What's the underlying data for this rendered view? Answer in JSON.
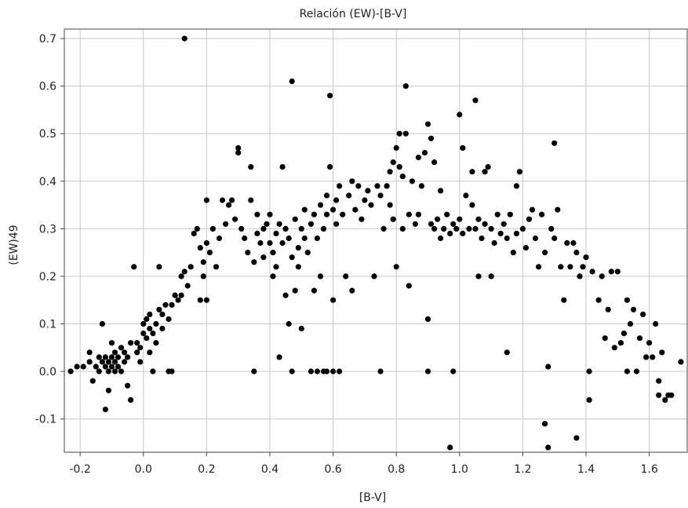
{
  "chart_data": {
    "type": "scatter",
    "title": "Relación (EW)-[B-V]",
    "xlabel": "[B-V]",
    "ylabel": "(EW)49",
    "xlim": [
      -0.25,
      1.72
    ],
    "ylim": [
      -0.17,
      0.72
    ],
    "xticks": [
      -0.2,
      0.0,
      0.2,
      0.4,
      0.6,
      0.8,
      1.0,
      1.2,
      1.4,
      1.6
    ],
    "xtick_labels": [
      "-0.2",
      "0.0",
      "0.2",
      "0.4",
      "0.6",
      "0.8",
      "1.0",
      "1.2",
      "1.4",
      "1.6"
    ],
    "yticks": [
      -0.1,
      0.0,
      0.1,
      0.2,
      0.3,
      0.4,
      0.5,
      0.6,
      0.7
    ],
    "ytick_labels": [
      "-0.1",
      "0.0",
      "0.1",
      "0.2",
      "0.3",
      "0.4",
      "0.5",
      "0.6",
      "0.7"
    ],
    "grid": true,
    "marker_color": "#000000",
    "grid_color": "#c8c8c8",
    "points": [
      [
        -0.23,
        0.0
      ],
      [
        -0.21,
        0.01
      ],
      [
        -0.19,
        0.01
      ],
      [
        -0.17,
        0.02
      ],
      [
        -0.17,
        0.04
      ],
      [
        -0.16,
        -0.02
      ],
      [
        -0.15,
        0.01
      ],
      [
        -0.14,
        0.0
      ],
      [
        -0.14,
        0.03
      ],
      [
        -0.13,
        0.02
      ],
      [
        -0.13,
        0.1
      ],
      [
        -0.12,
        0.01
      ],
      [
        -0.12,
        -0.08
      ],
      [
        -0.12,
        0.03
      ],
      [
        -0.11,
        0.0
      ],
      [
        -0.11,
        0.02
      ],
      [
        -0.11,
        -0.04
      ],
      [
        -0.1,
        0.01
      ],
      [
        -0.1,
        0.03
      ],
      [
        -0.1,
        0.06
      ],
      [
        -0.09,
        0.0
      ],
      [
        -0.09,
        0.02
      ],
      [
        -0.09,
        0.04
      ],
      [
        -0.08,
        0.01
      ],
      [
        -0.08,
        0.03
      ],
      [
        -0.07,
        0.0
      ],
      [
        -0.07,
        0.05
      ],
      [
        -0.06,
        0.02
      ],
      [
        -0.06,
        0.04
      ],
      [
        -0.05,
        -0.03
      ],
      [
        -0.05,
        0.03
      ],
      [
        -0.04,
        0.06
      ],
      [
        -0.04,
        -0.06
      ],
      [
        -0.03,
        0.22
      ],
      [
        -0.02,
        0.04
      ],
      [
        -0.02,
        0.06
      ],
      [
        -0.01,
        0.02
      ],
      [
        -0.01,
        0.05
      ],
      [
        0.0,
        0.08
      ],
      [
        0.0,
        0.1
      ],
      [
        0.01,
        0.07
      ],
      [
        0.01,
        0.11
      ],
      [
        0.02,
        0.09
      ],
      [
        0.02,
        0.12
      ],
      [
        0.02,
        0.04
      ],
      [
        0.03,
        0.08
      ],
      [
        0.03,
        0.0
      ],
      [
        0.04,
        0.06
      ],
      [
        0.04,
        0.1
      ],
      [
        0.05,
        0.13
      ],
      [
        0.05,
        0.22
      ],
      [
        0.06,
        0.09
      ],
      [
        0.06,
        0.12
      ],
      [
        0.07,
        0.14
      ],
      [
        0.08,
        0.11
      ],
      [
        0.08,
        0.0
      ],
      [
        0.09,
        0.14
      ],
      [
        0.09,
        0.0
      ],
      [
        0.1,
        0.16
      ],
      [
        0.11,
        0.15
      ],
      [
        0.12,
        0.2
      ],
      [
        0.12,
        0.16
      ],
      [
        0.13,
        0.21
      ],
      [
        0.13,
        0.7
      ],
      [
        0.14,
        0.18
      ],
      [
        0.15,
        0.22
      ],
      [
        0.16,
        0.29
      ],
      [
        0.17,
        0.3
      ],
      [
        0.18,
        0.15
      ],
      [
        0.18,
        0.26
      ],
      [
        0.19,
        0.2
      ],
      [
        0.19,
        0.23
      ],
      [
        0.2,
        0.27
      ],
      [
        0.2,
        0.36
      ],
      [
        0.2,
        0.15
      ],
      [
        0.21,
        0.25
      ],
      [
        0.22,
        0.3
      ],
      [
        0.23,
        0.22
      ],
      [
        0.24,
        0.28
      ],
      [
        0.25,
        0.36
      ],
      [
        0.26,
        0.31
      ],
      [
        0.27,
        0.35
      ],
      [
        0.28,
        0.36
      ],
      [
        0.29,
        0.32
      ],
      [
        0.3,
        0.46
      ],
      [
        0.3,
        0.47
      ],
      [
        0.31,
        0.3
      ],
      [
        0.32,
        0.28
      ],
      [
        0.33,
        0.25
      ],
      [
        0.34,
        0.43
      ],
      [
        0.34,
        0.36
      ],
      [
        0.35,
        0.23
      ],
      [
        0.35,
        0.0
      ],
      [
        0.36,
        0.29
      ],
      [
        0.36,
        0.33
      ],
      [
        0.37,
        0.27
      ],
      [
        0.38,
        0.3
      ],
      [
        0.38,
        0.24
      ],
      [
        0.39,
        0.31
      ],
      [
        0.4,
        0.27
      ],
      [
        0.4,
        0.33
      ],
      [
        0.41,
        0.25
      ],
      [
        0.41,
        0.2
      ],
      [
        0.42,
        0.29
      ],
      [
        0.42,
        0.22
      ],
      [
        0.43,
        0.31
      ],
      [
        0.43,
        0.03
      ],
      [
        0.44,
        0.27
      ],
      [
        0.44,
        0.43
      ],
      [
        0.45,
        0.3
      ],
      [
        0.45,
        0.16
      ],
      [
        0.46,
        0.1
      ],
      [
        0.46,
        0.28
      ],
      [
        0.47,
        0.0
      ],
      [
        0.47,
        0.61
      ],
      [
        0.47,
        0.24
      ],
      [
        0.48,
        0.32
      ],
      [
        0.48,
        0.17
      ],
      [
        0.49,
        0.26
      ],
      [
        0.49,
        0.22
      ],
      [
        0.5,
        0.3
      ],
      [
        0.5,
        0.09
      ],
      [
        0.51,
        0.28
      ],
      [
        0.51,
        0.34
      ],
      [
        0.52,
        0.25
      ],
      [
        0.53,
        0.31
      ],
      [
        0.53,
        0.0
      ],
      [
        0.54,
        0.33
      ],
      [
        0.54,
        0.17
      ],
      [
        0.55,
        0.28
      ],
      [
        0.55,
        0.0
      ],
      [
        0.56,
        0.35
      ],
      [
        0.56,
        0.2
      ],
      [
        0.57,
        0.3
      ],
      [
        0.57,
        0.0
      ],
      [
        0.58,
        0.33
      ],
      [
        0.58,
        0.37
      ],
      [
        0.58,
        0.0
      ],
      [
        0.59,
        0.58
      ],
      [
        0.59,
        0.43
      ],
      [
        0.6,
        0.34
      ],
      [
        0.6,
        0.15
      ],
      [
        0.6,
        0.0
      ],
      [
        0.61,
        0.36
      ],
      [
        0.61,
        0.31
      ],
      [
        0.62,
        0.0
      ],
      [
        0.62,
        0.39
      ],
      [
        0.63,
        0.33
      ],
      [
        0.64,
        0.2
      ],
      [
        0.65,
        0.37
      ],
      [
        0.66,
        0.4
      ],
      [
        0.66,
        0.17
      ],
      [
        0.67,
        0.34
      ],
      [
        0.68,
        0.39
      ],
      [
        0.69,
        0.32
      ],
      [
        0.7,
        0.36
      ],
      [
        0.71,
        0.38
      ],
      [
        0.72,
        0.35
      ],
      [
        0.73,
        0.2
      ],
      [
        0.74,
        0.39
      ],
      [
        0.75,
        0.0
      ],
      [
        0.75,
        0.37
      ],
      [
        0.76,
        0.3
      ],
      [
        0.77,
        0.39
      ],
      [
        0.78,
        0.42
      ],
      [
        0.78,
        0.35
      ],
      [
        0.79,
        0.44
      ],
      [
        0.79,
        0.32
      ],
      [
        0.8,
        0.47
      ],
      [
        0.8,
        0.22
      ],
      [
        0.81,
        0.5
      ],
      [
        0.81,
        0.43
      ],
      [
        0.82,
        0.41
      ],
      [
        0.82,
        0.3
      ],
      [
        0.83,
        0.5
      ],
      [
        0.83,
        0.6
      ],
      [
        0.84,
        0.18
      ],
      [
        0.84,
        0.33
      ],
      [
        0.85,
        0.4
      ],
      [
        0.86,
        0.31
      ],
      [
        0.87,
        0.45
      ],
      [
        0.87,
        0.33
      ],
      [
        0.88,
        0.39
      ],
      [
        0.89,
        0.46
      ],
      [
        0.9,
        0.52
      ],
      [
        0.9,
        0.11
      ],
      [
        0.9,
        0.0
      ],
      [
        0.91,
        0.31
      ],
      [
        0.91,
        0.49
      ],
      [
        0.92,
        0.3
      ],
      [
        0.92,
        0.44
      ],
      [
        0.93,
        0.32
      ],
      [
        0.94,
        0.28
      ],
      [
        0.94,
        0.38
      ],
      [
        0.95,
        0.3
      ],
      [
        0.96,
        0.33
      ],
      [
        0.97,
        -0.16
      ],
      [
        0.97,
        0.29
      ],
      [
        0.98,
        0.0
      ],
      [
        0.98,
        0.31
      ],
      [
        0.99,
        0.3
      ],
      [
        1.0,
        0.54
      ],
      [
        1.0,
        0.32
      ],
      [
        1.01,
        0.47
      ],
      [
        1.01,
        0.29
      ],
      [
        1.02,
        0.37
      ],
      [
        1.03,
        0.3
      ],
      [
        1.04,
        0.42
      ],
      [
        1.04,
        0.35
      ],
      [
        1.05,
        0.57
      ],
      [
        1.05,
        0.3
      ],
      [
        1.06,
        0.2
      ],
      [
        1.06,
        0.32
      ],
      [
        1.07,
        0.28
      ],
      [
        1.08,
        0.42
      ],
      [
        1.08,
        0.31
      ],
      [
        1.09,
        0.43
      ],
      [
        1.1,
        0.3
      ],
      [
        1.1,
        0.2
      ],
      [
        1.11,
        0.27
      ],
      [
        1.12,
        0.33
      ],
      [
        1.13,
        0.29
      ],
      [
        1.14,
        0.31
      ],
      [
        1.15,
        0.04
      ],
      [
        1.15,
        0.28
      ],
      [
        1.16,
        0.33
      ],
      [
        1.17,
        0.25
      ],
      [
        1.18,
        0.39
      ],
      [
        1.18,
        0.29
      ],
      [
        1.19,
        0.42
      ],
      [
        1.2,
        0.3
      ],
      [
        1.21,
        0.26
      ],
      [
        1.22,
        0.32
      ],
      [
        1.23,
        0.34
      ],
      [
        1.24,
        0.28
      ],
      [
        1.25,
        0.22
      ],
      [
        1.26,
        0.33
      ],
      [
        1.27,
        0.25
      ],
      [
        1.27,
        -0.11
      ],
      [
        1.28,
        0.01
      ],
      [
        1.28,
        -0.16
      ],
      [
        1.29,
        0.3
      ],
      [
        1.3,
        0.48
      ],
      [
        1.3,
        0.28
      ],
      [
        1.31,
        0.34
      ],
      [
        1.32,
        0.22
      ],
      [
        1.33,
        0.15
      ],
      [
        1.34,
        0.27
      ],
      [
        1.35,
        0.22
      ],
      [
        1.36,
        0.27
      ],
      [
        1.37,
        0.25
      ],
      [
        1.37,
        -0.14
      ],
      [
        1.38,
        0.2
      ],
      [
        1.39,
        0.22
      ],
      [
        1.4,
        0.24
      ],
      [
        1.41,
        0.0
      ],
      [
        1.41,
        -0.06
      ],
      [
        1.42,
        0.21
      ],
      [
        1.44,
        0.15
      ],
      [
        1.45,
        0.2
      ],
      [
        1.46,
        0.07
      ],
      [
        1.47,
        0.13
      ],
      [
        1.48,
        0.21
      ],
      [
        1.49,
        0.05
      ],
      [
        1.5,
        0.21
      ],
      [
        1.51,
        0.06
      ],
      [
        1.52,
        0.08
      ],
      [
        1.53,
        0.15
      ],
      [
        1.53,
        0.0
      ],
      [
        1.54,
        0.1
      ],
      [
        1.55,
        0.13
      ],
      [
        1.56,
        0.0
      ],
      [
        1.57,
        0.07
      ],
      [
        1.58,
        0.12
      ],
      [
        1.59,
        0.03
      ],
      [
        1.6,
        0.06
      ],
      [
        1.61,
        0.03
      ],
      [
        1.62,
        0.1
      ],
      [
        1.63,
        -0.05
      ],
      [
        1.63,
        -0.02
      ],
      [
        1.64,
        0.04
      ],
      [
        1.65,
        -0.06
      ],
      [
        1.66,
        -0.05
      ],
      [
        1.67,
        -0.05
      ],
      [
        1.7,
        0.02
      ]
    ]
  }
}
